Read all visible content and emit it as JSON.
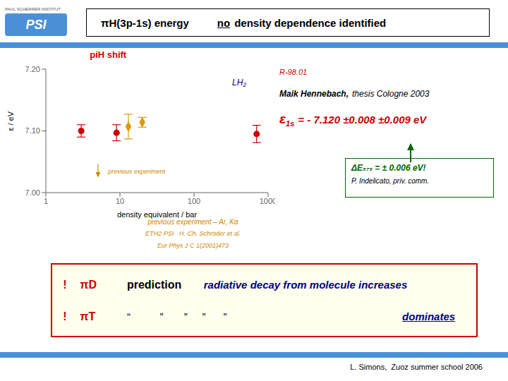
{
  "chart_data": {
    "type": "scatter",
    "title": "piH shift",
    "xlabel": "density equivalent / bar",
    "ylabel": "ε / eV",
    "log": "x",
    "grid": false,
    "xlim": [
      1,
      1000
    ],
    "xticks": [
      1,
      10,
      100,
      1000
    ],
    "ylim": [
      7.0,
      7.2
    ],
    "yticks": [
      {
        "value": 7.0,
        "label": "7.00"
      },
      {
        "value": 7.1,
        "label": "7.10"
      },
      {
        "value": 7.2,
        "label": "7.20"
      }
    ],
    "series": [
      {
        "color": "#cc0000",
        "marker": "circle",
        "x": [
          3,
          9,
          700
        ],
        "values": [
          7.1,
          7.097,
          7.095
        ],
        "yerr": [
          0.01,
          0.013,
          0.014
        ]
      },
      {
        "color": "#dd9900",
        "marker": "diamond",
        "x": [
          13,
          20
        ],
        "values": [
          7.107,
          7.114
        ],
        "yerr_lo": [
          0.02,
          0.008
        ],
        "yerr_hi": [
          0.02,
          0.008
        ]
      }
    ],
    "annotations": [
      "PAUL SCHERRER INSTITUT",
      "PSI",
      "πH(3p-1s) energy",
      "no",
      "density dependence identified",
      "LH₂",
      "previous experiment",
      "previous experiment – Ar, Kα",
      "ETH2-PSI   H.-Ch. Schröder et al.",
      "Eur Phys J C 1(2001)473",
      "R-98.01",
      "Maik Hennebach,",
      "thesis Cologne 2003",
      "ε",
      "1s",
      "= - 7.120 ±0.008 ±0.009 eV",
      "ΔE₅₇₅ = ± 0.006 eV!",
      "P. Indelicato, priv. comm.",
      "!",
      "πD",
      "prediction",
      "radiative decay from molecule increases",
      "!",
      "πT",
      "“          ”       ”     ”      ”",
      "dominates",
      "L. Simons,  Zuoz summer school 2006"
    ]
  }
}
